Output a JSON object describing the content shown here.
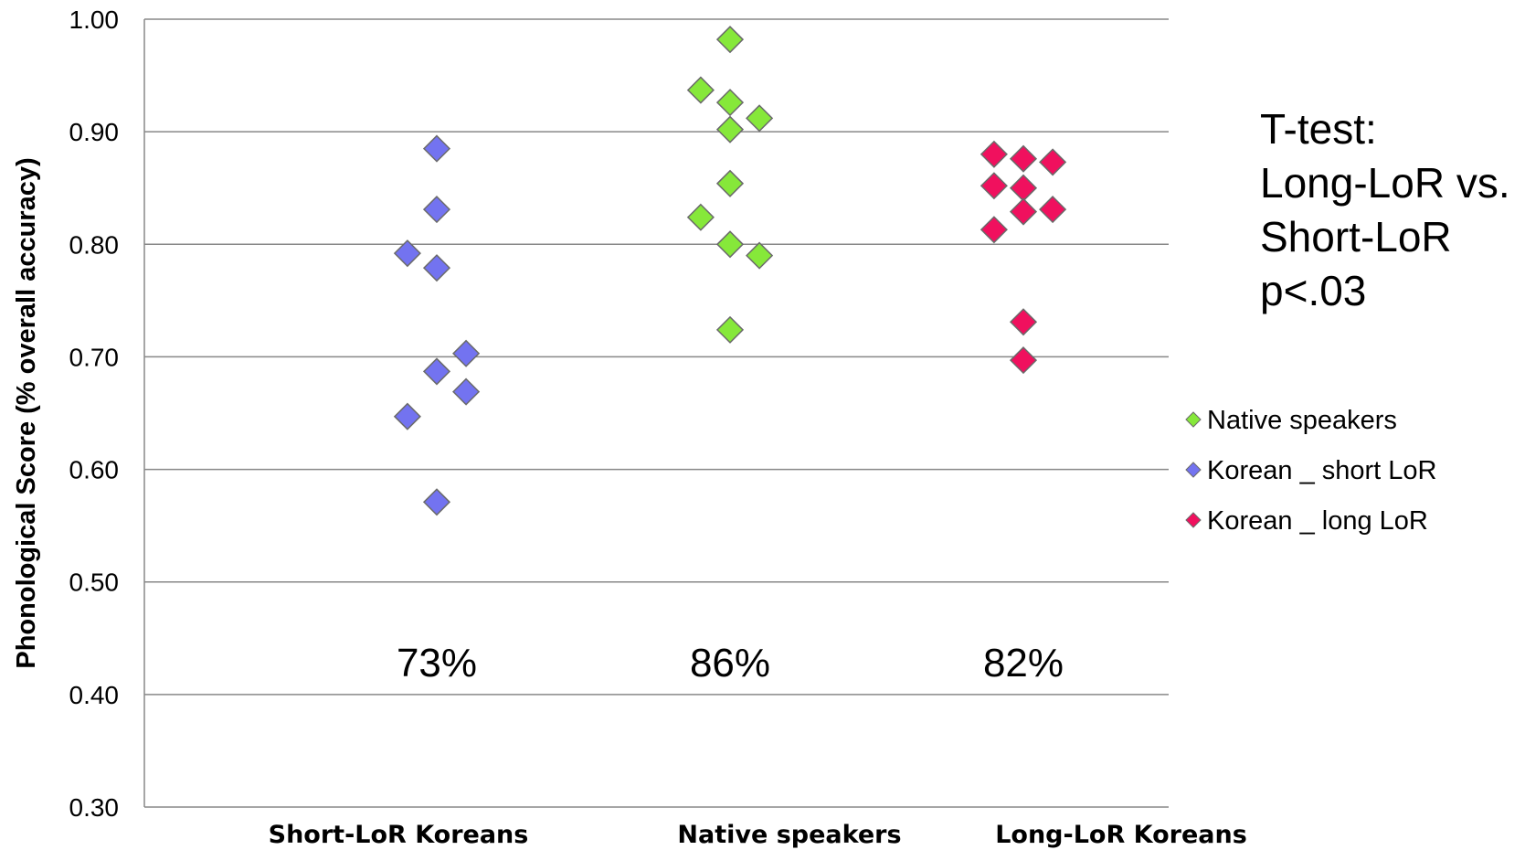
{
  "chart_data": {
    "type": "scatter",
    "title": "",
    "xlabel": "",
    "ylabel": "Phonological Score (% overall accuracy)",
    "ylim": [
      0.3,
      1.0
    ],
    "yticks": [
      "0.30",
      "0.40",
      "0.50",
      "0.60",
      "0.70",
      "0.80",
      "0.90",
      "1.00"
    ],
    "grid": true,
    "legend_position": "right",
    "categories": [
      "Short-LoR Koreans",
      "Native speakers",
      "Long-LoR Koreans"
    ],
    "series": [
      {
        "name": "Native speakers",
        "color": "#86e83a",
        "points": [
          {
            "x": 2.0,
            "y": 0.982
          },
          {
            "x": 1.9,
            "y": 0.937
          },
          {
            "x": 2.0,
            "y": 0.926
          },
          {
            "x": 2.1,
            "y": 0.912
          },
          {
            "x": 2.0,
            "y": 0.902
          },
          {
            "x": 2.0,
            "y": 0.854
          },
          {
            "x": 1.9,
            "y": 0.824
          },
          {
            "x": 2.0,
            "y": 0.8
          },
          {
            "x": 2.1,
            "y": 0.79
          },
          {
            "x": 2.0,
            "y": 0.724
          }
        ]
      },
      {
        "name": "Korean _ short LoR",
        "color": "#7373f0",
        "points": [
          {
            "x": 1.0,
            "y": 0.885
          },
          {
            "x": 1.0,
            "y": 0.831
          },
          {
            "x": 0.9,
            "y": 0.792
          },
          {
            "x": 1.0,
            "y": 0.779
          },
          {
            "x": 1.1,
            "y": 0.703
          },
          {
            "x": 1.0,
            "y": 0.687
          },
          {
            "x": 1.1,
            "y": 0.669
          },
          {
            "x": 0.9,
            "y": 0.647
          },
          {
            "x": 1.0,
            "y": 0.571
          }
        ]
      },
      {
        "name": "Korean _ long LoR",
        "color": "#f0105e",
        "points": [
          {
            "x": 2.9,
            "y": 0.88
          },
          {
            "x": 3.0,
            "y": 0.876
          },
          {
            "x": 3.1,
            "y": 0.873
          },
          {
            "x": 2.9,
            "y": 0.852
          },
          {
            "x": 3.0,
            "y": 0.85
          },
          {
            "x": 3.1,
            "y": 0.831
          },
          {
            "x": 3.0,
            "y": 0.829
          },
          {
            "x": 2.9,
            "y": 0.813
          },
          {
            "x": 3.0,
            "y": 0.731
          },
          {
            "x": 3.0,
            "y": 0.697
          }
        ]
      }
    ],
    "annotations": {
      "percentages": [
        "73%",
        "86%",
        "82%"
      ],
      "ttest": [
        "T-test:",
        "Long-LoR vs.",
        "Short-LoR",
        "p<.03"
      ]
    }
  }
}
